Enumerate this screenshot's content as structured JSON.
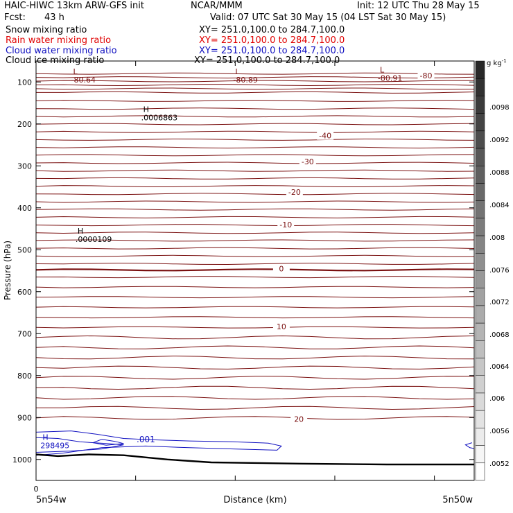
{
  "header": {
    "model": "HAIC-HIWC 13km ARW-GFS init",
    "org": "NCAR/MMM",
    "init": "Init: 12 UTC Thu 28 May 15",
    "fcst_label": "Fcst:",
    "fcst_value": "43 h",
    "valid": "Valid: 07 UTC Sat 30 May 15 (04 LST Sat 30 May 15)"
  },
  "fields": [
    {
      "name": "Snow mixing ratio",
      "xy": "XY= 251.0,100.0 to 284.7,100.0",
      "color": "#000000"
    },
    {
      "name": "Rain water mixing ratio",
      "xy": "XY= 251.0,100.0 to 284.7,100.0",
      "color": "#e00000"
    },
    {
      "name": "Cloud water mixing ratio",
      "xy": "XY= 251.0,100.0 to 284.7,100.0",
      "color": "#1010c0"
    },
    {
      "name": "Cloud ice mixing ratio",
      "xy": "XY= 251.0,100.0 to 284.7,100.0",
      "color": "#000000"
    }
  ],
  "chart_data": {
    "type": "line",
    "xlabel": "Distance (km)",
    "ylabel": "Pressure (hPa)",
    "x_origin_label": "0",
    "x_start_label": "5n54w",
    "x_end_label": "5n50w",
    "ylim": [
      1050,
      50
    ],
    "yticks": [
      100,
      200,
      300,
      400,
      500,
      600,
      700,
      800,
      900,
      1000
    ],
    "temperature_contour_labels": [
      {
        "label": "-80",
        "x": 0.89,
        "p": 85
      },
      {
        "label": "-40",
        "x": 0.66,
        "p": 228
      },
      {
        "label": "-30",
        "x": 0.62,
        "p": 290
      },
      {
        "label": "-20",
        "x": 0.59,
        "p": 362
      },
      {
        "label": "-10",
        "x": 0.57,
        "p": 440
      },
      {
        "label": "0",
        "x": 0.56,
        "p": 545
      },
      {
        "label": "10",
        "x": 0.56,
        "p": 683
      },
      {
        "label": "20",
        "x": 0.6,
        "p": 904
      }
    ],
    "extrema": [
      {
        "type": "L",
        "value": "-80.64",
        "x": 0.08,
        "p": 88
      },
      {
        "type": "L",
        "value": "-80.89",
        "x": 0.45,
        "p": 88
      },
      {
        "type": "L",
        "value": "-80.91",
        "x": 0.78,
        "p": 84
      },
      {
        "type": "H",
        "value": ".0006863",
        "x": 0.24,
        "p": 178
      },
      {
        "type": "H",
        "value": ".0000109",
        "x": 0.09,
        "p": 468
      },
      {
        "type": "H",
        "value": "298495",
        "x": 0.01,
        "p": 960
      }
    ],
    "cloud_water_label": ".001",
    "colorbar": {
      "units": "g kg",
      "units_exponent": "-1",
      "labels": [
        ".0098",
        ".0092",
        ".0088",
        ".0084",
        ".008",
        ".0076",
        ".0072",
        ".0068",
        ".0064",
        ".006",
        ".0056",
        ".0052"
      ]
    }
  }
}
